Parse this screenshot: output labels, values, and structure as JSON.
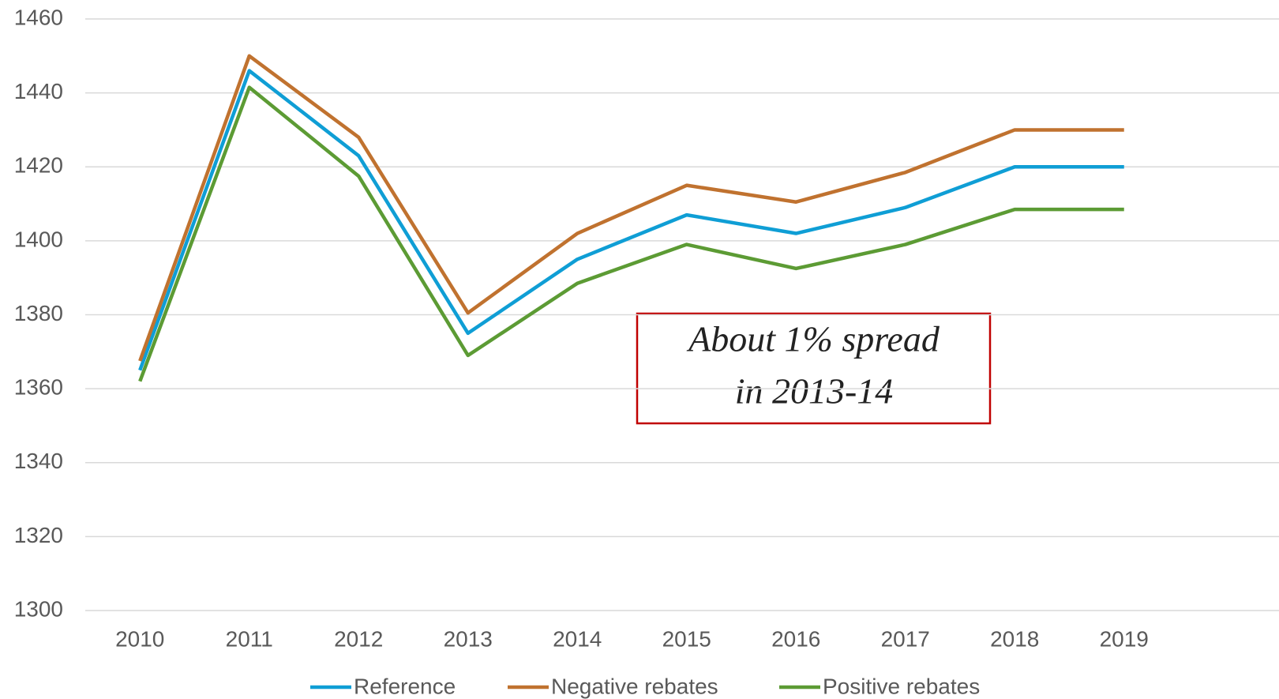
{
  "chart_data": {
    "type": "line",
    "categories": [
      "2010",
      "2011",
      "2012",
      "2013",
      "2014",
      "2015",
      "2016",
      "2017",
      "2018",
      "2019"
    ],
    "series": [
      {
        "name": "Reference",
        "color": "#0f9ed5",
        "values": [
          1365,
          1446,
          1423,
          1375,
          1395,
          1407,
          1402,
          1409,
          1420,
          1420
        ]
      },
      {
        "name": "Negative rebates",
        "color": "#c0722f",
        "values": [
          1367.5,
          1450,
          1428,
          1380.5,
          1402,
          1415,
          1410.5,
          1418.5,
          1430,
          1430
        ]
      },
      {
        "name": "Positive rebates",
        "color": "#5c9b34",
        "values": [
          1362,
          1441.5,
          1417.5,
          1369,
          1388.5,
          1399,
          1392.5,
          1399,
          1408.5,
          1408.5
        ]
      }
    ],
    "ylim": [
      1300,
      1460
    ],
    "yticks": [
      1300,
      1320,
      1340,
      1360,
      1380,
      1400,
      1420,
      1440,
      1460
    ],
    "grid": true,
    "legend": "bottom",
    "annotation": [
      "About 1% spread",
      "in 2013-14"
    ]
  }
}
